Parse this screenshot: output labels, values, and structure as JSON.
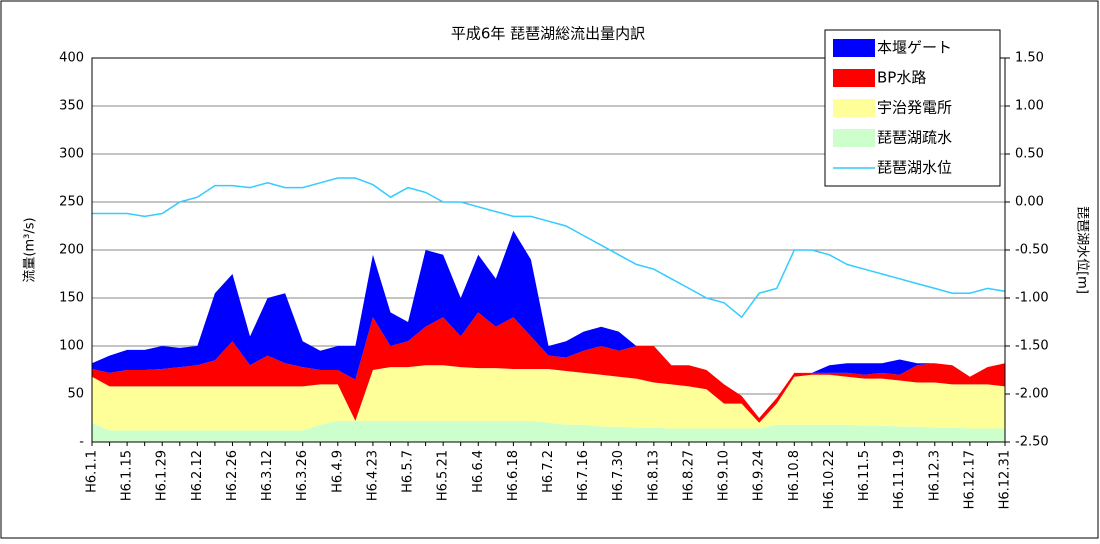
{
  "chart_data": {
    "type": "area",
    "title": "平成6年  琵琶湖総流出量内訳",
    "ylabel": "流量(m³/s)",
    "y2label": "琵琶湖水位[m]",
    "categories": [
      "H6.1.1",
      null,
      "H6.1.15",
      null,
      "H6.1.29",
      null,
      "H6.2.12",
      null,
      "H6.2.26",
      null,
      "H6.3.12",
      null,
      "H6.3.26",
      null,
      "H6.4.9",
      null,
      "H6.4.23",
      null,
      "H6.5.7",
      null,
      "H6.5.21",
      null,
      "H6.6.4",
      null,
      "H6.6.18",
      null,
      "H6.7.2",
      null,
      "H6.7.16",
      null,
      "H6.7.30",
      null,
      "H6.8.13",
      null,
      "H6.8.27",
      null,
      "H6.9.10",
      null,
      "H6.9.24",
      null,
      "H6.10.8",
      null,
      "H6.10.22",
      null,
      "H6.11.5",
      null,
      "H6.11.19",
      null,
      "H6.12.3",
      null,
      "H6.12.17",
      null,
      "H6.12.31"
    ],
    "ylim": [
      0,
      400
    ],
    "yticks": [
      {
        "value": 0,
        "label": "-"
      },
      50,
      100,
      150,
      200,
      250,
      300,
      350,
      400
    ],
    "y2lim": [
      -2.5,
      1.5
    ],
    "y2ticks": [
      {
        "value": -2.5,
        "label": "-2.50"
      },
      {
        "value": -2,
        "label": "-2.00"
      },
      {
        "value": -1.5,
        "label": "-1.50"
      },
      {
        "value": -1,
        "label": "-1.00"
      },
      {
        "value": -0.5,
        "label": "-0.50"
      },
      {
        "value": 0,
        "label": "0.00"
      },
      {
        "value": 0.5,
        "label": "0.50"
      },
      {
        "value": 1,
        "label": "1.00"
      },
      {
        "value": 1.5,
        "label": "1.50"
      }
    ],
    "grid": true,
    "legend": "top-right",
    "series": [
      {
        "name": "本堰ゲート",
        "color": "#0000ff",
        "values": [
          6,
          18,
          21,
          21,
          24,
          20,
          20,
          70,
          70,
          30,
          60,
          73,
          27,
          20,
          25,
          35,
          65,
          35,
          20,
          80,
          65,
          40,
          60,
          50,
          90,
          80,
          10,
          17,
          20,
          20,
          20,
          0,
          0,
          0,
          0,
          0,
          0,
          0,
          0,
          0,
          0,
          0,
          8,
          10,
          12,
          10,
          16,
          2,
          0,
          0,
          0,
          0,
          0
        ]
      },
      {
        "name": "BP水路",
        "color": "#ff0000",
        "values": [
          8,
          14,
          17,
          17,
          18,
          20,
          22,
          27,
          47,
          22,
          32,
          24,
          20,
          15,
          15,
          43,
          55,
          22,
          27,
          40,
          50,
          32,
          58,
          43,
          54,
          34,
          14,
          14,
          23,
          30,
          27,
          34,
          38,
          20,
          22,
          20,
          20,
          8,
          5,
          6,
          4,
          2,
          2,
          4,
          4,
          6,
          6,
          18,
          20,
          20,
          8,
          18,
          24
        ]
      },
      {
        "name": "宇治発電所",
        "color": "#ffff99",
        "values": [
          48,
          46,
          46,
          46,
          46,
          46,
          46,
          46,
          46,
          46,
          46,
          46,
          46,
          42,
          38,
          0,
          53,
          56,
          56,
          58,
          58,
          56,
          55,
          55,
          54,
          54,
          56,
          56,
          54,
          54,
          52,
          51,
          47,
          46,
          44,
          41,
          26,
          26,
          6,
          22,
          50,
          52,
          52,
          50,
          49,
          49,
          48,
          46,
          47,
          45,
          46,
          46,
          44
        ]
      },
      {
        "name": "琵琶湖疏水",
        "color": "#ccffcc",
        "values": [
          20,
          12,
          12,
          12,
          12,
          12,
          12,
          12,
          12,
          12,
          12,
          12,
          12,
          18,
          22,
          22,
          22,
          22,
          22,
          22,
          22,
          22,
          22,
          22,
          22,
          22,
          20,
          18,
          18,
          16,
          16,
          15,
          15,
          14,
          14,
          14,
          14,
          14,
          14,
          18,
          18,
          18,
          18,
          18,
          17,
          17,
          16,
          16,
          15,
          15,
          14,
          14,
          14
        ]
      },
      {
        "name": "琵琶湖水位",
        "color": "#33ccff",
        "type": "line",
        "axis": "y2",
        "values": [
          -0.12,
          -0.12,
          -0.12,
          -0.15,
          -0.12,
          0.0,
          0.05,
          0.17,
          0.17,
          0.15,
          0.2,
          0.15,
          0.15,
          0.2,
          0.25,
          0.25,
          0.18,
          0.05,
          0.15,
          0.1,
          0.0,
          0.0,
          -0.05,
          -0.1,
          -0.15,
          -0.15,
          -0.2,
          -0.25,
          -0.35,
          -0.45,
          -0.55,
          -0.65,
          -0.7,
          -0.8,
          -0.9,
          -1.0,
          -1.05,
          -1.2,
          -0.95,
          -0.9,
          -0.5,
          -0.5,
          -0.55,
          -0.65,
          -0.7,
          -0.75,
          -0.8,
          -0.85,
          -0.9,
          -0.95,
          -0.95,
          -0.9,
          -0.93
        ]
      }
    ]
  }
}
